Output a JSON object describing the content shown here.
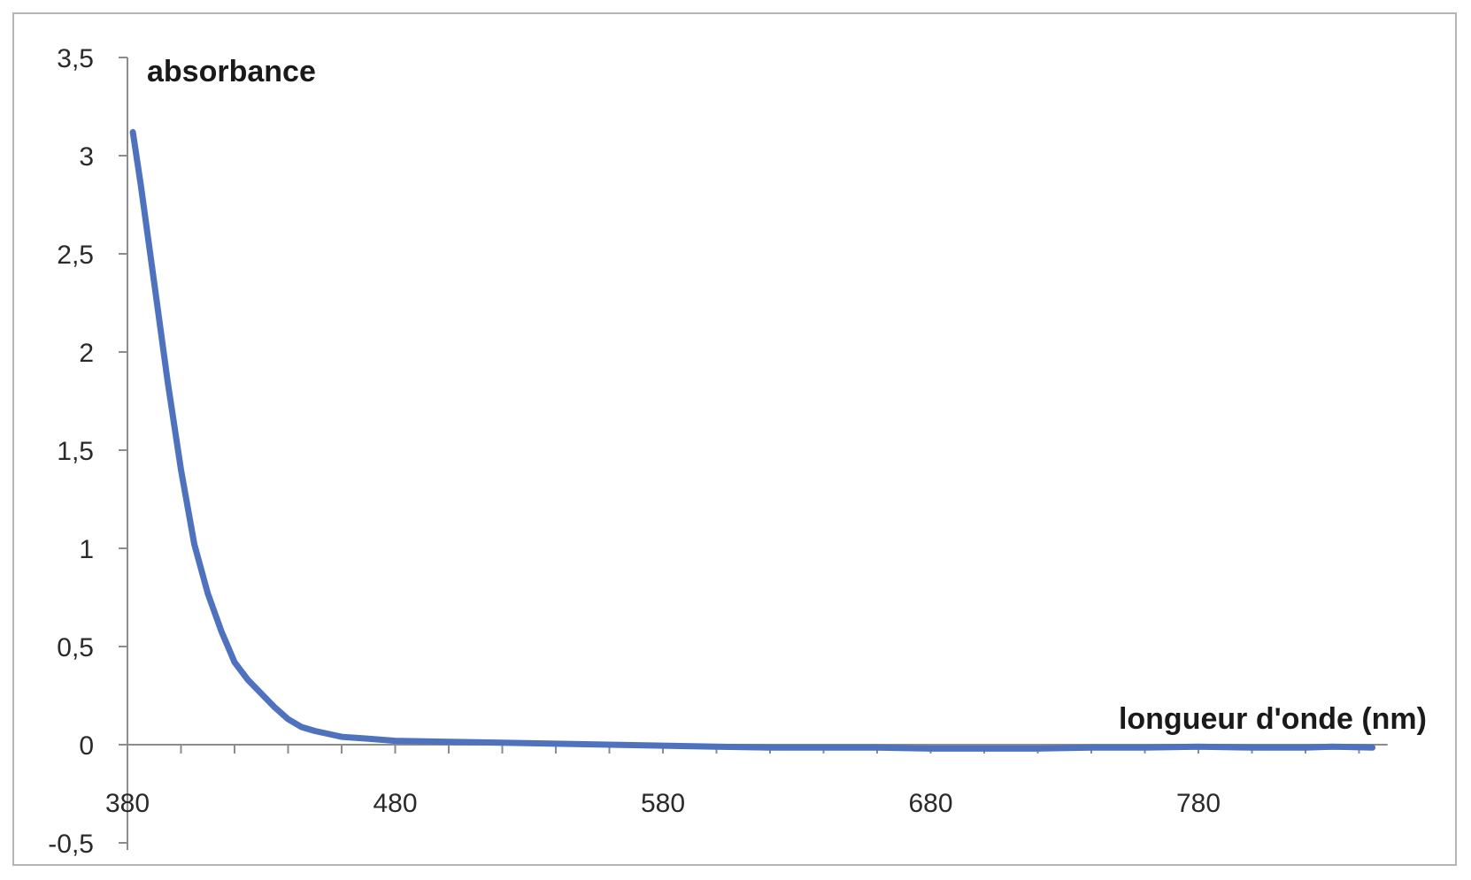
{
  "chart_data": {
    "type": "line",
    "title": "",
    "xlabel": "longueur d'onde (nm)",
    "ylabel": "absorbance",
    "xlim": [
      380,
      850
    ],
    "ylim": [
      -0.5,
      3.5
    ],
    "x_ticks": [
      380,
      480,
      580,
      680,
      780
    ],
    "x_tick_labels": [
      "380",
      "480",
      "580",
      "680",
      "780"
    ],
    "y_ticks": [
      -0.5,
      0,
      0.5,
      1,
      1.5,
      2,
      2.5,
      3,
      3.5
    ],
    "y_tick_labels": [
      "-0,5",
      "0",
      "0,5",
      "1",
      "1,5",
      "2",
      "2,5",
      "3",
      "3,5"
    ],
    "grid": false,
    "line_color": "#4f72bf",
    "series": [
      {
        "x": [
          382,
          385,
          390,
          395,
          400,
          405,
          410,
          415,
          420,
          425,
          430,
          435,
          440,
          445,
          450,
          460,
          470,
          480,
          500,
          520,
          540,
          560,
          580,
          600,
          620,
          640,
          660,
          680,
          700,
          720,
          740,
          760,
          780,
          800,
          820,
          830,
          845
        ],
        "y": [
          3.12,
          2.85,
          2.35,
          1.85,
          1.4,
          1.02,
          0.77,
          0.58,
          0.42,
          0.33,
          0.26,
          0.19,
          0.13,
          0.09,
          0.07,
          0.04,
          0.03,
          0.02,
          0.015,
          0.01,
          0.005,
          0.0,
          -0.005,
          -0.01,
          -0.015,
          -0.015,
          -0.015,
          -0.02,
          -0.02,
          -0.02,
          -0.015,
          -0.015,
          -0.01,
          -0.015,
          -0.015,
          -0.01,
          -0.015
        ]
      }
    ]
  }
}
